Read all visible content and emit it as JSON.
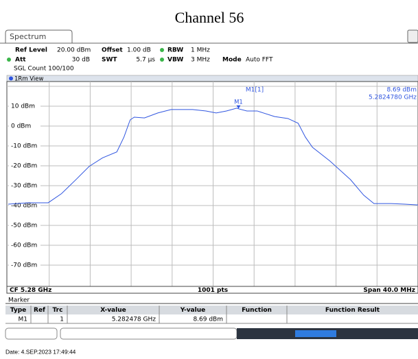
{
  "title": "Channel 56",
  "tab": "Spectrum",
  "settings": {
    "ref_level": {
      "label": "Ref Level",
      "value": "20.00 dBm"
    },
    "offset": {
      "label": "Offset",
      "value": "1.00 dB"
    },
    "rbw": {
      "label": "RBW",
      "value": "1 MHz"
    },
    "att": {
      "label": "Att",
      "value": "30 dB"
    },
    "swt": {
      "label": "SWT",
      "value": "5.7 µs"
    },
    "vbw": {
      "label": "VBW",
      "value": "3 MHz"
    },
    "mode": {
      "label": "Mode",
      "value": "Auto FFT"
    },
    "count": "SGL Count 100/100"
  },
  "view": "1Rm View",
  "chart_data": {
    "type": "line",
    "x": [
      5.26,
      5.2619,
      5.2639,
      5.2652,
      5.2666,
      5.2679,
      5.2692,
      5.2706,
      5.2713,
      5.2719,
      5.2723,
      5.2733,
      5.2746,
      5.2759,
      5.278,
      5.2793,
      5.2803,
      5.2813,
      5.2823,
      5.282478,
      5.2833,
      5.2843,
      5.286,
      5.2873,
      5.2883,
      5.289,
      5.2897,
      5.2914,
      5.2934,
      5.2947,
      5.2957,
      5.2974,
      5.2987,
      5.3
    ],
    "series": [
      {
        "color": "#2f55e0",
        "values": [
          -39.3,
          -38.6,
          -38.6,
          -34,
          -27,
          -20.3,
          -16,
          -13,
          -5.5,
          3.1,
          4.5,
          4.1,
          6.6,
          8.3,
          8.3,
          7.6,
          6.6,
          7.6,
          9,
          8.69,
          7.6,
          7.6,
          4.8,
          3.8,
          1.4,
          -5.5,
          -10.7,
          -17.6,
          -26.9,
          -34.8,
          -39,
          -39,
          -39.3,
          -39.7
        ]
      }
    ],
    "xlim": [
      5.26,
      5.3
    ],
    "ylim": [
      -80,
      20
    ],
    "yticks": [
      {
        "value": 10,
        "label": "10 dBm"
      },
      {
        "value": 0,
        "label": "0 dBm"
      },
      {
        "value": -10,
        "label": "-10 dBm"
      },
      {
        "value": -20,
        "label": "-20 dBm"
      },
      {
        "value": -30,
        "label": "-30 dBm"
      },
      {
        "value": -40,
        "label": "-40 dBm"
      },
      {
        "value": -50,
        "label": "-50 dBm"
      },
      {
        "value": -60,
        "label": "-60 dBm"
      },
      {
        "value": -70,
        "label": "-70 dBm"
      }
    ],
    "grid": true,
    "marker": {
      "name": "M1",
      "title": "M1[1]",
      "x": 5.282478,
      "y": 8.69,
      "y_label": "8.69 dBm",
      "x_label": "5.2824780 GHz"
    },
    "center": "CF 5.28 GHz",
    "points": "1001 pts",
    "span": "Span 40.0 MHz"
  },
  "marker_table": {
    "title": "Marker",
    "columns": [
      "Type",
      "Ref",
      "Trc",
      "X-value",
      "Y-value",
      "Function",
      "Function Result"
    ],
    "rows": [
      [
        "M1",
        null,
        "1",
        "5.282478 GHz",
        "8.69 dBm",
        null,
        null
      ]
    ]
  },
  "footer": "Date: 4.SEP.2023  17:49:44"
}
